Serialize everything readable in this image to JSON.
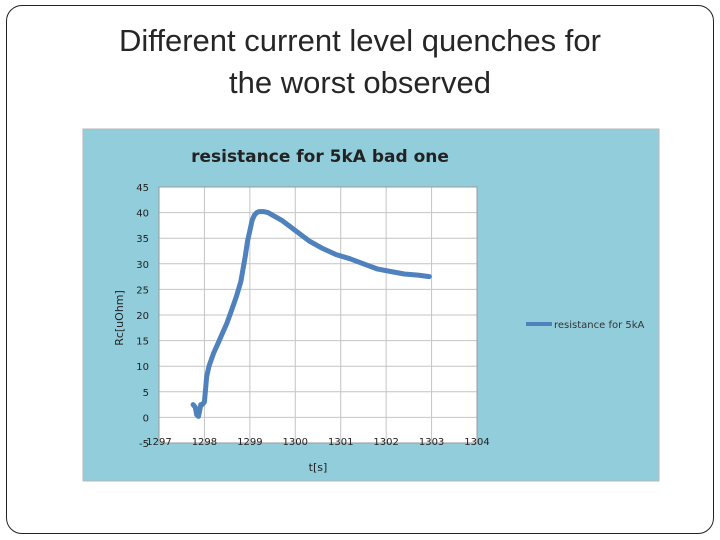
{
  "slide": {
    "title": "Different current level quenches for\nthe worst observed"
  },
  "chart_data": {
    "type": "line",
    "title": "resistance for 5kA bad one",
    "xlabel": "t[s]",
    "ylabel": "Rc[uOhm]",
    "xlim": [
      1297,
      1304
    ],
    "ylim": [
      -5,
      45
    ],
    "xticks": [
      "1297",
      "1298",
      "1299",
      "1300",
      "1301",
      "1302",
      "1303",
      "1304"
    ],
    "yticks": [
      "-5",
      "0",
      "5",
      "10",
      "15",
      "20",
      "25",
      "30",
      "35",
      "40",
      "45"
    ],
    "grid": true,
    "legend_position": "right",
    "series": [
      {
        "name": "resistance for 5kA",
        "color": "#4f81bd",
        "x": [
          1297.75,
          1297.8,
          1297.83,
          1297.87,
          1297.9,
          1297.92,
          1297.95,
          1298.0,
          1298.05,
          1298.1,
          1298.2,
          1298.3,
          1298.4,
          1298.5,
          1298.6,
          1298.7,
          1298.8,
          1298.9,
          1298.95,
          1299.0,
          1299.05,
          1299.1,
          1299.15,
          1299.2,
          1299.3,
          1299.4,
          1299.5,
          1299.7,
          1300.0,
          1300.3,
          1300.6,
          1300.9,
          1301.2,
          1301.5,
          1301.8,
          1302.1,
          1302.4,
          1302.7,
          1302.95
        ],
        "y": [
          2.5,
          2.0,
          0.5,
          0.2,
          1.5,
          2.5,
          2.5,
          3.0,
          8.0,
          10.0,
          12.5,
          14.5,
          16.5,
          18.5,
          21.0,
          23.5,
          26.5,
          31.5,
          34.5,
          36.5,
          38.5,
          39.5,
          40.0,
          40.2,
          40.2,
          40.0,
          39.5,
          38.5,
          36.5,
          34.5,
          33.0,
          31.8,
          31.0,
          30.0,
          29.0,
          28.5,
          28.0,
          27.8,
          27.5
        ]
      }
    ]
  }
}
